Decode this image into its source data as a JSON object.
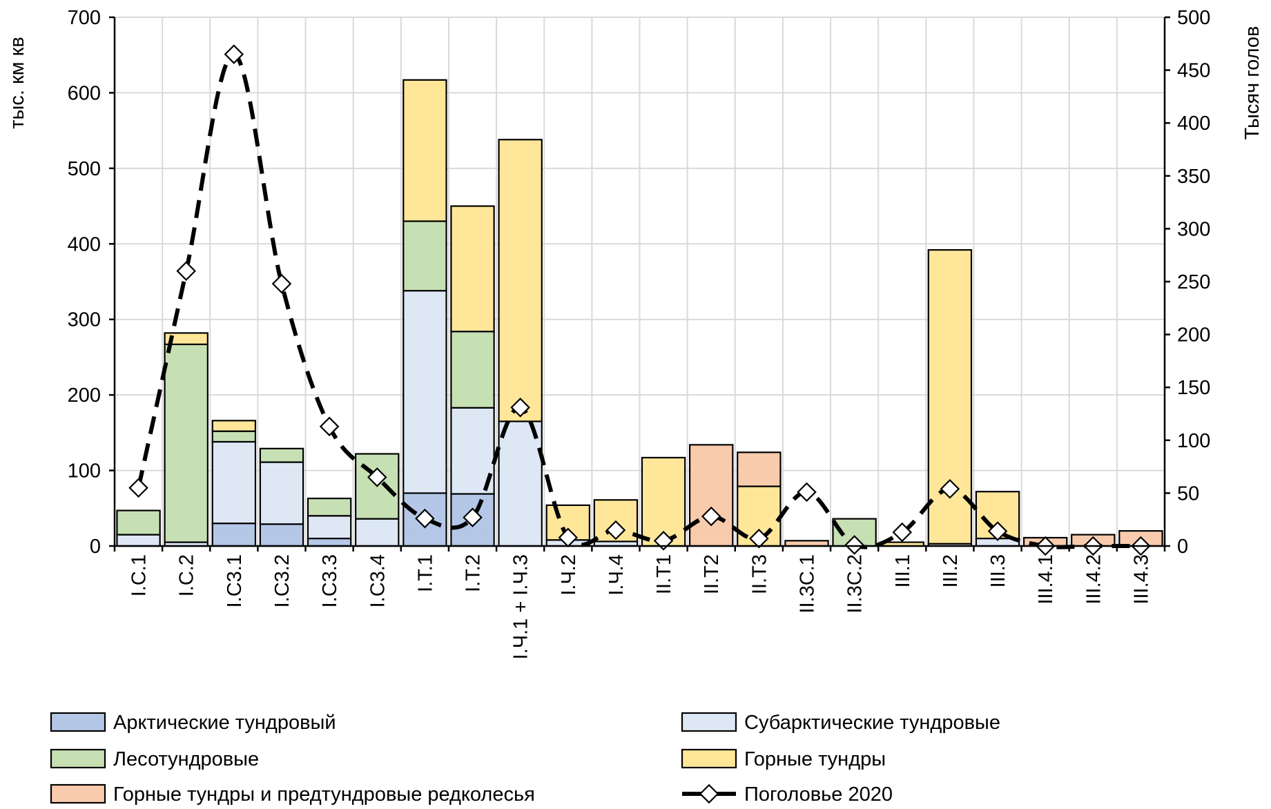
{
  "chart_data": {
    "type": "bar",
    "stacked": true,
    "title": "",
    "categories": [
      "I.C.1",
      "I.C.2",
      "I.C3.1",
      "I.C3.2",
      "I.C3.3",
      "I.C3.4",
      "I.T.1",
      "I.T.2",
      "I.Ч.1 + I.Ч.3",
      "I.Ч.2",
      "I.Ч.4",
      "II.T1",
      "II.T2",
      "II.T3",
      "II.3C.1",
      "II.3C.2",
      "III.1",
      "III.2",
      "III.3",
      "III.4.1",
      "III.4.2",
      "III.4.3"
    ],
    "ylabel_left": "тыс. км кв",
    "ylabel_right": "Тысяч голов",
    "ylim_left": [
      0,
      700
    ],
    "yticks_left": [
      0,
      100,
      200,
      300,
      400,
      500,
      600,
      700
    ],
    "ylim_right": [
      0,
      500
    ],
    "yticks_right": [
      0,
      50,
      100,
      150,
      200,
      250,
      300,
      350,
      400,
      450,
      500
    ],
    "grid": true,
    "legend_position": "bottom",
    "series": [
      {
        "name": "Арктические тундровый",
        "color": "#b4c7e7",
        "axis": "left",
        "values": [
          0,
          0,
          30,
          29,
          10,
          0,
          70,
          69,
          0,
          0,
          0,
          0,
          0,
          0,
          0,
          0,
          0,
          0,
          0,
          0,
          0,
          0
        ]
      },
      {
        "name": "Субарктические тундровые",
        "color": "#dee8f5",
        "axis": "left",
        "values": [
          15,
          5,
          108,
          82,
          30,
          36,
          268,
          114,
          165,
          8,
          6,
          0,
          0,
          0,
          0,
          0,
          0,
          3,
          10,
          0,
          0,
          0
        ]
      },
      {
        "name": "Лесотундровые",
        "color": "#c6e0b4",
        "axis": "left",
        "values": [
          32,
          262,
          14,
          18,
          23,
          86,
          92,
          101,
          0,
          0,
          0,
          0,
          0,
          0,
          0,
          36,
          0,
          0,
          0,
          0,
          0,
          0
        ]
      },
      {
        "name": "Горные тундры",
        "color": "#ffe699",
        "axis": "left",
        "values": [
          0,
          15,
          14,
          0,
          0,
          0,
          187,
          166,
          373,
          46,
          55,
          117,
          0,
          79,
          0,
          0,
          5,
          389,
          62,
          0,
          0,
          0
        ]
      },
      {
        "name": "Горные тундры и предтундровые редколесья",
        "color": "#f8cbad",
        "axis": "left",
        "values": [
          0,
          0,
          0,
          0,
          0,
          0,
          0,
          0,
          0,
          0,
          0,
          0,
          134,
          45,
          7,
          0,
          0,
          0,
          0,
          11,
          15,
          20
        ]
      },
      {
        "name": "Поголовье 2020",
        "type": "line",
        "style": "dashed",
        "marker": "diamond",
        "color": "#000000",
        "axis": "right",
        "values": [
          55,
          260,
          465,
          248,
          113,
          65,
          26,
          27,
          131,
          8,
          15,
          5,
          28,
          7,
          51,
          1,
          13,
          54,
          14,
          0,
          0,
          0
        ]
      }
    ]
  }
}
